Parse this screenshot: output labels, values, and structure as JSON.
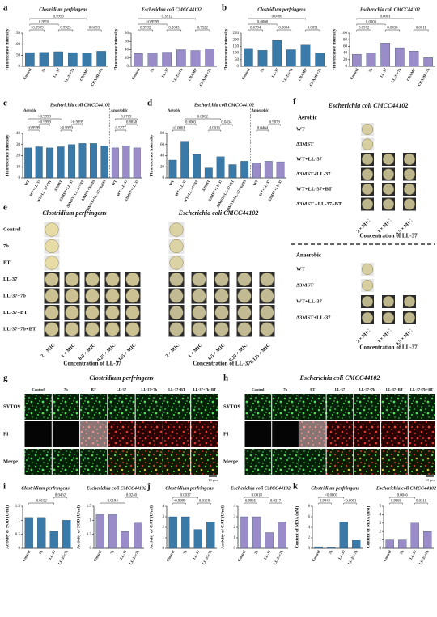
{
  "chart_data": [
    {
      "type": "bar",
      "panel": "a",
      "title": "Clostridium perfringens",
      "ylabel": "Fluorescence intensity",
      "categories": [
        "Control",
        "7b",
        "LL-37",
        "LL-37+7b",
        "CRAMP",
        "CRAMP+7b"
      ],
      "values": [
        62,
        63,
        66,
        62,
        60,
        68
      ],
      "color": "#3a7aa8",
      "ylim": [
        0,
        150
      ],
      "yticks": [
        0,
        50,
        100,
        150
      ],
      "comparisons": [
        {
          "between": [
            0,
            1
          ],
          "label": ">0.9999"
        },
        {
          "between": [
            2,
            3
          ],
          "label": "0.9925"
        },
        {
          "between": [
            4,
            5
          ],
          "label": "0.6693"
        },
        {
          "between": [
            0,
            2
          ],
          "label": "0.9991"
        },
        {
          "between": [
            0,
            4
          ],
          "label": "0.9996"
        }
      ]
    },
    {
      "type": "bar",
      "title": "Escherichia coli CMCC44102",
      "ylabel": "Fluorescence intensity",
      "categories": [
        "Control",
        "7b",
        "LL-37",
        "LL-37+7b",
        "CRAMP",
        "CRAMP+7b"
      ],
      "values": [
        31,
        32,
        34,
        40,
        38,
        42
      ],
      "color": "#9a8cc8",
      "ylim": [
        0,
        80
      ],
      "yticks": [
        0,
        20,
        40,
        60,
        80
      ],
      "comparisons": [
        {
          "between": [
            0,
            1
          ],
          "label": "0.9992"
        },
        {
          "between": [
            2,
            3
          ],
          "label": "0.2043"
        },
        {
          "between": [
            4,
            5
          ],
          "label": "0.7522"
        },
        {
          "between": [
            0,
            2
          ],
          "label": ">0.9999"
        },
        {
          "between": [
            0,
            4
          ],
          "label": "0.3812"
        }
      ]
    },
    {
      "type": "bar",
      "panel": "b",
      "title": "Clostridium perfringens",
      "ylabel": "Fluorescence intensity",
      "categories": [
        "Control",
        "7b",
        "LL-37",
        "LL-37+7b",
        "CRAMP",
        "CRAMP+7b"
      ],
      "values": [
        135,
        120,
        195,
        125,
        160,
        100
      ],
      "color": "#3a7aa8",
      "ylim": [
        0,
        250
      ],
      "yticks": [
        0,
        50,
        100,
        150,
        200,
        250
      ],
      "comparisons": [
        {
          "between": [
            0,
            1
          ],
          "label": "0.6794"
        },
        {
          "between": [
            2,
            3
          ],
          "label": "0.0004"
        },
        {
          "between": [
            4,
            5
          ],
          "label": "0.0051"
        },
        {
          "between": [
            0,
            2
          ],
          "label": "0.0008"
        },
        {
          "between": [
            0,
            4
          ],
          "label": "0.0486"
        }
      ]
    },
    {
      "type": "bar",
      "title": "Escherichia coli CMCC44102",
      "ylabel": "Fluorescence intensity",
      "categories": [
        "Control",
        "7b",
        "LL-37",
        "LL-37+7b",
        "CRAMP",
        "CRAMP+7b"
      ],
      "values": [
        36,
        40,
        70,
        56,
        46,
        26
      ],
      "color": "#9a8cc8",
      "ylim": [
        0,
        100
      ],
      "yticks": [
        0,
        20,
        40,
        60,
        80,
        100
      ],
      "comparisons": [
        {
          "between": [
            0,
            1
          ],
          "label": "0.0572"
        },
        {
          "between": [
            2,
            3
          ],
          "label": "0.0438"
        },
        {
          "between": [
            4,
            5
          ],
          "label": "0.0011"
        },
        {
          "between": [
            0,
            2
          ],
          "label": "0.0003"
        },
        {
          "between": [
            0,
            4
          ],
          "label": "0.0001"
        }
      ]
    },
    {
      "type": "bar",
      "panel": "c",
      "title": "Escherichia coli CMCC44102",
      "ylabel": "Fluorescence intensity",
      "sections": [
        {
          "name": "Aerobic",
          "color": "#3a7aa8",
          "categories": [
            "WT",
            "WT+LL-37",
            "WT+LL-37+BT",
            "Δ3MST",
            "Δ3MST+LL-37",
            "Δ3MST+LL-37+BT",
            "Δ3MST+NaHS",
            "Δ3MST+LL-37+NaHS"
          ],
          "values": [
            27,
            28,
            27,
            28,
            30,
            31,
            31,
            29
          ]
        },
        {
          "name": "Anaerobic",
          "color": "#9a8cc8",
          "categories": [
            "WT",
            "WT+LL-37",
            "Δ3MST+LL-37"
          ],
          "values": [
            27,
            29,
            27
          ]
        }
      ],
      "ylim": [
        0,
        40
      ],
      "yticks": [
        0,
        10,
        20,
        30,
        40
      ],
      "comparisons": [
        {
          "between": [
            0,
            1
          ],
          "label": ">0.9999"
        },
        {
          "between": [
            3,
            4
          ],
          "label": ">0.9999"
        },
        {
          "between": [
            8,
            9
          ],
          "label": "0.5277"
        },
        {
          "between": [
            1,
            2
          ],
          "label": ">0.9999"
        },
        {
          "between": [
            4,
            5
          ],
          "label": ">0.9999"
        },
        {
          "between": [
            9,
            10
          ],
          "label": "0.8858"
        },
        {
          "between": [
            0,
            3
          ],
          "label": ">0.9999"
        },
        {
          "between": [
            8,
            10
          ],
          "label": "0.0769"
        }
      ]
    },
    {
      "type": "bar",
      "panel": "d",
      "title": "Escherichia coli CMCC44102",
      "ylabel": "Fluorescence intensity",
      "sections": [
        {
          "name": "Aerobic",
          "color": "#3a7aa8",
          "categories": [
            "WT",
            "WT+LL-37",
            "WT+LL-37+BT",
            "Δ3MST",
            "Δ3MST+LL-37",
            "Δ3MST+LL-37+BT",
            "Δ3MST+LL-37+NaHS"
          ],
          "values": [
            32,
            66,
            42,
            18,
            38,
            24,
            30
          ]
        },
        {
          "name": "Anaerobic",
          "color": "#9a8cc8",
          "categories": [
            "WT",
            "WT+LL-37",
            "Δ3MST+LL-37"
          ],
          "values": [
            27,
            30,
            29
          ]
        }
      ],
      "ylim": [
        0,
        80
      ],
      "yticks": [
        0,
        20,
        40,
        60,
        80
      ],
      "comparisons": [
        {
          "between": [
            0,
            1
          ],
          "label": "<0.0001"
        },
        {
          "between": [
            3,
            4
          ],
          "label": "0.0016"
        },
        {
          "between": [
            7,
            8
          ],
          "label": "0.0464"
        },
        {
          "between": [
            1,
            2
          ],
          "label": "0.0003"
        },
        {
          "between": [
            4,
            5
          ],
          "label": "0.0434"
        },
        {
          "between": [
            8,
            9
          ],
          "label": "0.9879"
        },
        {
          "between": [
            1,
            4
          ],
          "label": "0.0002"
        }
      ]
    },
    {
      "type": "bar",
      "panel": "i",
      "title": "Clostridium perfringens",
      "ylabel": "Activity of SOD (U/ml)",
      "categories": [
        "Control",
        "7b",
        "LL-37",
        "LL-37+7b"
      ],
      "values": [
        1.1,
        1.1,
        0.6,
        1.0
      ],
      "color": "#3a7aa8",
      "ylim": [
        0,
        1.5
      ],
      "yticks": [
        0,
        0.5,
        1,
        1.5
      ],
      "comparisons": [
        {
          "between": [
            0,
            2
          ],
          "label": "0.0152"
        },
        {
          "between": [
            2,
            3
          ],
          "label": "0.0462"
        }
      ]
    },
    {
      "type": "bar",
      "title": "Escherichia coli CMCC44102",
      "ylabel": "Activity of SOD (U/ml)",
      "categories": [
        "Control",
        "7b",
        "LL-37",
        "LL-37+7b"
      ],
      "values": [
        1.2,
        1.2,
        0.6,
        0.9
      ],
      "color": "#9a8cc8",
      "ylim": [
        0,
        1.5
      ],
      "yticks": [
        0,
        0.5,
        1,
        1.5
      ],
      "comparisons": [
        {
          "between": [
            0,
            2
          ],
          "label": "0.0184"
        },
        {
          "between": [
            2,
            3
          ],
          "label": "0.0240"
        }
      ]
    },
    {
      "type": "bar",
      "panel": "j",
      "title": "Clostridium perfringens",
      "ylabel": "Activity of CAT (U/ml)",
      "categories": [
        "Control",
        "7b",
        "LL-37",
        "LL-37+7b"
      ],
      "values": [
        3.0,
        3.0,
        1.8,
        2.5
      ],
      "color": "#3a7aa8",
      "ylim": [
        0,
        4
      ],
      "yticks": [
        0,
        1,
        2,
        3,
        4
      ],
      "comparisons": [
        {
          "between": [
            0,
            1
          ],
          "label": ">0.9999"
        },
        {
          "between": [
            2,
            3
          ],
          "label": "0.0158"
        },
        {
          "between": [
            0,
            2
          ],
          "label": "0.0037"
        }
      ]
    },
    {
      "type": "bar",
      "title": "Escherichia coli CMCC44102",
      "ylabel": "Activity of CAT (U/ml)",
      "categories": [
        "Control",
        "7b",
        "LL-37",
        "LL-37+7b"
      ],
      "values": [
        3.0,
        3.0,
        1.5,
        2.5
      ],
      "color": "#9a8cc8",
      "ylim": [
        0,
        4
      ],
      "yticks": [
        0,
        1,
        2,
        3,
        4
      ],
      "comparisons": [
        {
          "between": [
            0,
            1
          ],
          "label": "0.9965"
        },
        {
          "between": [
            2,
            3
          ],
          "label": "0.0317"
        },
        {
          "between": [
            0,
            2
          ],
          "label": "0.0018"
        }
      ]
    },
    {
      "type": "bar",
      "panel": "k",
      "title": "Clostridium perfringens",
      "ylabel": "Content of MDA (nM)",
      "categories": [
        "Control",
        "7b",
        "LL-37",
        "LL-37+7b"
      ],
      "values": [
        0.3,
        0.2,
        5.0,
        1.5
      ],
      "color": "#3a7aa8",
      "ylim": [
        0,
        8
      ],
      "yticks": [
        0,
        2,
        4,
        6,
        8
      ],
      "comparisons": [
        {
          "between": [
            0,
            1
          ],
          "label": "0.9943"
        },
        {
          "between": [
            2,
            3
          ],
          "label": "<0.0001"
        },
        {
          "between": [
            0,
            2
          ],
          "label": "<0.0001"
        }
      ]
    },
    {
      "type": "bar",
      "title": "Escherichia coli CMCC44102",
      "ylabel": "Content of MDA (nM)",
      "categories": [
        "Control",
        "7b",
        "LL-37",
        "LL-37+7b"
      ],
      "values": [
        1.0,
        1.0,
        3.0,
        2.0
      ],
      "color": "#9a8cc8",
      "ylim": [
        0,
        5
      ],
      "yticks": [
        0,
        1,
        2,
        3,
        4,
        5
      ],
      "comparisons": [
        {
          "between": [
            0,
            1
          ],
          "label": "0.9981"
        },
        {
          "between": [
            2,
            3
          ],
          "label": "0.0311"
        },
        {
          "between": [
            0,
            2
          ],
          "label": "0.0046"
        }
      ]
    }
  ],
  "plate_panels": [
    {
      "panel": "e",
      "grids": [
        {
          "title": "Clostridium perfringens",
          "single_rows": [
            "Control",
            "7b",
            "BT"
          ],
          "rows": [
            "LL-37",
            "LL-37+7b",
            "LL-37+BT",
            "LL-37+7b+BT"
          ],
          "columns": [
            "2 × MIC",
            "1 × MIC",
            "0.5 × MIC",
            "0.25 × MIC",
            "0.125 × MIC"
          ],
          "x_label": "Concentration of LL-37"
        },
        {
          "title": "Escherichia coli CMCC44102",
          "single_rows": [
            null,
            null,
            null
          ],
          "rows": [
            null,
            null,
            null,
            null
          ],
          "columns": [
            "2 × MIC",
            "1 × MIC",
            "0.5 × MIC",
            "0.25 × MIC",
            "0.125 × MIC"
          ],
          "x_label": "Concentration of LL-37"
        }
      ]
    },
    {
      "panel": "f",
      "title": "Escherichia coli CMCC44102",
      "grids": [
        {
          "title": "Aerobic",
          "single_rows": [
            "WT",
            "Δ3MST"
          ],
          "rows": [
            "WT+LL-37",
            "Δ3MST+LL-37",
            "WT+LL-37+BT",
            "Δ3MST +LL-37+BT"
          ],
          "columns": [
            "2 × MIC",
            "1 × MIC",
            "0.5 × MIC"
          ],
          "x_label": "Concentration of LL-37"
        },
        {
          "title": "Anaerobic",
          "single_rows": [
            "WT",
            "Δ3MST"
          ],
          "rows": [
            "WT+LL-37",
            "Δ3MST+LL-37"
          ],
          "columns": [
            "2 × MIC",
            "1 × MIC",
            "0.5 × MIC"
          ],
          "x_label": "Concentration of LL-37"
        }
      ]
    }
  ],
  "microscopy": [
    {
      "panel": "g",
      "title": "Clostridium perfringens",
      "columns": [
        "Control",
        "7b",
        "BT",
        "LL-37",
        "LL-37+7b",
        "LL-37+BT",
        "LL-37+7b+BT"
      ],
      "rows": [
        "SYTO9",
        "PI",
        "Merge"
      ],
      "scale": "10 μm"
    },
    {
      "panel": "h",
      "title": "Escherichia coli CMCC44102",
      "columns": [
        "Control",
        "7b",
        "BT",
        "LL-37",
        "LL-37+7b",
        "LL-37+BT",
        "LL-37+7b+BT"
      ],
      "rows": [
        "SYTO9",
        "PI",
        "Merge"
      ],
      "scale": "10 μm"
    }
  ]
}
